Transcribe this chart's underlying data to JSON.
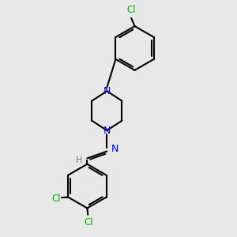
{
  "background_color": "#e8e8e8",
  "bond_color": "#000000",
  "N_color": "#0000cc",
  "Cl_color": "#00aa00",
  "H_color": "#777777",
  "line_width": 1.5,
  "font_size": 8.5,
  "fig_size": [
    3.0,
    3.0
  ],
  "dpi": 100,
  "xlim": [
    0,
    10
  ],
  "ylim": [
    0,
    10
  ]
}
